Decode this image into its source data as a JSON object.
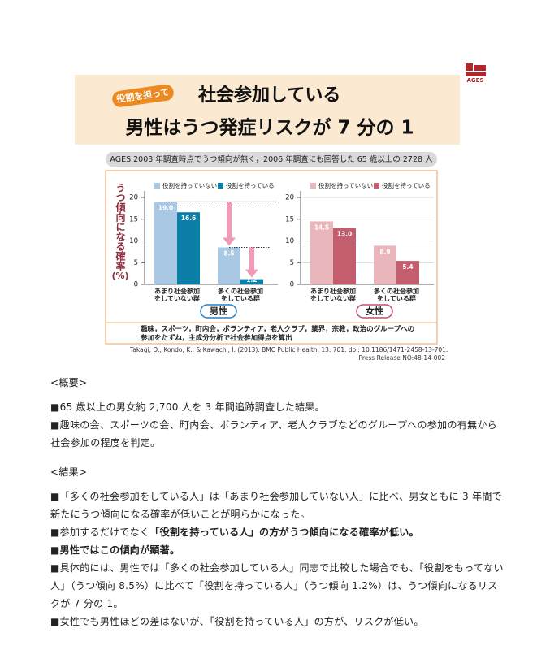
{
  "logo": "AGES",
  "header": {
    "badge": "役割を担って",
    "title_lines": [
      "社会参加している",
      "男性はうつ発症リスクが 7 分の 1"
    ]
  },
  "subtitle": "AGES 2003 年調査時点でうつ傾向が無く，2006 年調査にも回答した 65 歳以上の 2728 人",
  "figure": {
    "y_label": "うつ傾向になる確率",
    "y_unit": "(%)",
    "note_lines": [
      "趣味，スポーツ，町内会，ボランティア，老人クラブ，業界，宗教，政治のグループへの",
      "参加をたずね，主成分分析で社会参加得点を算出"
    ],
    "citation": "Takagi, D., Kondo, K., & Kawachi, I. (2013). BMC Public Health, 13: 701. doi: 10.1186/1471-2458-13-701.",
    "release": "Press Release NO:48-14-002"
  },
  "chart_data": [
    {
      "type": "bar",
      "title": "男性",
      "categories": [
        "あまり社会参加をしていない群",
        "多くの社会参加をしている群"
      ],
      "series": [
        {
          "name": "役割を持っていない",
          "color": "#a8c8e3",
          "values": [
            19,
            8.5
          ],
          "value_labels": [
            "19.0",
            "8.5"
          ]
        },
        {
          "name": "役割を持っている",
          "color": "#0b7fa7",
          "values": [
            16.6,
            1.2
          ],
          "value_labels": [
            "16.6",
            "1.2"
          ]
        }
      ],
      "ylim": [
        0,
        20
      ],
      "yticks": [
        0,
        5,
        10,
        15,
        20
      ],
      "grid": false,
      "title_color": "#2a7fc0"
    },
    {
      "type": "bar",
      "title": "女性",
      "categories": [
        "あまり社会参加をしていない群",
        "多くの社会参加をしている群"
      ],
      "series": [
        {
          "name": "役割を持っていない",
          "color": "#e8b6bb",
          "values": [
            14.5,
            8.9
          ],
          "value_labels": [
            "14.5",
            "8.9"
          ]
        },
        {
          "name": "役割を持っている",
          "color": "#c35e6e",
          "values": [
            13,
            5.4
          ],
          "value_labels": [
            "13.0",
            "5.4"
          ]
        }
      ],
      "ylim": [
        0,
        20
      ],
      "yticks": [
        0,
        5,
        10,
        15,
        20
      ],
      "grid": true,
      "title_color": "#c0506a"
    }
  ],
  "summary": {
    "heading": "<概要>",
    "items": [
      [
        {
          "text": "■65 歳以上の男女約 2,700 人を 3 年間追跡調査した結果。"
        }
      ],
      [
        {
          "text": "■趣味の会、スポーツの会、町内会、ボランティア、老人クラブなどのグループへの参加の有無から社会参加の程度を判定。"
        }
      ]
    ]
  },
  "results": {
    "heading": "<結果>",
    "items": [
      [
        {
          "text": "■「多くの社会参加をしている人」は「あまり社会参加していない人」に比べ、男女ともに 3 年間で新たにうつ傾向になる確率が低いことが明らかになった。"
        }
      ],
      [
        {
          "text": "■参加するだけでなく"
        },
        {
          "text": "「役割を持っている人」の方がうつ傾向になる確率が低い。",
          "bold": true
        }
      ],
      [
        {
          "text": "■男性ではこの傾向が顕著。",
          "bold": true
        }
      ],
      [
        {
          "text": "■具体的には、男性では「多くの社会参加している人」同志で比較した場合でも、「役割をもってない人」（うつ傾向 8.5%）に比べて「役割を持っている人」（うつ傾向 1.2%）は、うつ傾向になるリスクが 7 分の 1。"
        }
      ],
      [
        {
          "text": "■女性でも男性ほどの差はないが、「役割を持っている人」の方が、リスクが低い。"
        }
      ]
    ]
  }
}
